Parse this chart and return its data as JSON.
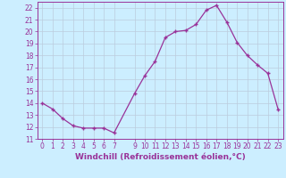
{
  "x": [
    0,
    1,
    2,
    3,
    4,
    5,
    6,
    7,
    9,
    10,
    11,
    12,
    13,
    14,
    15,
    16,
    17,
    18,
    19,
    20,
    21,
    22,
    23
  ],
  "y": [
    14.0,
    13.5,
    12.7,
    12.1,
    11.9,
    11.9,
    11.9,
    11.5,
    14.8,
    16.3,
    17.5,
    19.5,
    20.0,
    20.1,
    20.6,
    21.8,
    22.2,
    20.8,
    19.1,
    18.0,
    17.2,
    16.5,
    13.5
  ],
  "xlim": [
    -0.5,
    23.5
  ],
  "ylim": [
    11,
    22.5
  ],
  "yticks": [
    11,
    12,
    13,
    14,
    15,
    16,
    17,
    18,
    19,
    20,
    21,
    22
  ],
  "xticks": [
    0,
    1,
    2,
    3,
    4,
    5,
    6,
    7,
    9,
    10,
    11,
    12,
    13,
    14,
    15,
    16,
    17,
    18,
    19,
    20,
    21,
    22,
    23
  ],
  "xlabel": "Windchill (Refroidissement éolien,°C)",
  "line_color": "#993399",
  "marker": "+",
  "bg_color": "#cceeff",
  "grid_color": "#bbccdd",
  "label_fontsize": 6.5,
  "tick_fontsize": 5.5
}
